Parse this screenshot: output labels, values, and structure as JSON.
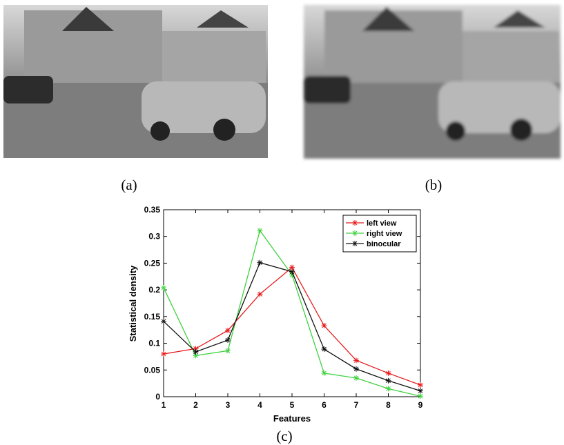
{
  "captions": [
    "(a)",
    "(b)",
    "(c)"
  ],
  "chart_data": {
    "type": "line",
    "xlabel": "Features",
    "ylabel": "Statistical density",
    "x": [
      1,
      2,
      3,
      4,
      5,
      6,
      7,
      8,
      9
    ],
    "xlim": [
      1,
      9
    ],
    "xticks": [
      1,
      2,
      3,
      4,
      5,
      6,
      7,
      8,
      9
    ],
    "ylim": [
      0,
      0.35
    ],
    "yticks": [
      0,
      0.05,
      0.1,
      0.15,
      0.2,
      0.25,
      0.3,
      0.35
    ],
    "grid": false,
    "legend": "upper right",
    "series": [
      {
        "name": "left view",
        "color": "#e8191b",
        "values": [
          0.08,
          0.09,
          0.124,
          0.192,
          0.242,
          0.133,
          0.068,
          0.044,
          0.022
        ]
      },
      {
        "name": "right view",
        "color": "#3fd13f",
        "values": [
          0.204,
          0.077,
          0.086,
          0.311,
          0.228,
          0.044,
          0.035,
          0.015,
          0.001
        ]
      },
      {
        "name": "binocular",
        "color": "#111111",
        "values": [
          0.141,
          0.084,
          0.106,
          0.251,
          0.234,
          0.089,
          0.052,
          0.03,
          0.011
        ]
      }
    ]
  }
}
